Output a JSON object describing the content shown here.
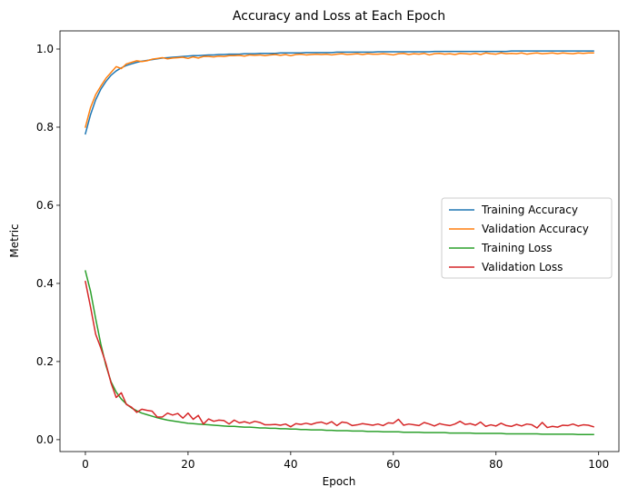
{
  "chart_data": {
    "type": "line",
    "title": "Accuracy and Loss at Each Epoch",
    "xlabel": "Epoch",
    "ylabel": "Metric",
    "xlim": [
      -4.95,
      103.95
    ],
    "ylim": [
      -0.0305,
      1.0465
    ],
    "xticks": [
      0,
      20,
      40,
      60,
      80,
      100
    ],
    "yticks": [
      0.0,
      0.2,
      0.4,
      0.6,
      0.8,
      1.0
    ],
    "xtick_labels": [
      "0",
      "20",
      "40",
      "60",
      "80",
      "100"
    ],
    "ytick_labels": [
      "0.0",
      "0.2",
      "0.4",
      "0.6",
      "0.8",
      "1.0"
    ],
    "grid": false,
    "legend_position": "center-right",
    "series": [
      {
        "name": "Training Accuracy",
        "color": "#1f77b4",
        "x": [
          0,
          1,
          2,
          3,
          4,
          5,
          6,
          7,
          8,
          9,
          10,
          11,
          12,
          13,
          14,
          15,
          16,
          17,
          18,
          19,
          20,
          21,
          22,
          23,
          24,
          25,
          26,
          27,
          28,
          29,
          30,
          31,
          32,
          33,
          34,
          35,
          36,
          37,
          38,
          39,
          40,
          41,
          42,
          43,
          44,
          45,
          46,
          47,
          48,
          49,
          50,
          51,
          52,
          53,
          54,
          55,
          56,
          57,
          58,
          59,
          60,
          61,
          62,
          63,
          64,
          65,
          66,
          67,
          68,
          69,
          70,
          71,
          72,
          73,
          74,
          75,
          76,
          77,
          78,
          79,
          80,
          81,
          82,
          83,
          84,
          85,
          86,
          87,
          88,
          89,
          90,
          91,
          92,
          93,
          94,
          95,
          96,
          97,
          98,
          99
        ],
        "y": [
          0.783,
          0.832,
          0.87,
          0.897,
          0.917,
          0.933,
          0.944,
          0.952,
          0.958,
          0.962,
          0.966,
          0.969,
          0.971,
          0.973,
          0.975,
          0.977,
          0.978,
          0.979,
          0.98,
          0.981,
          0.982,
          0.983,
          0.983,
          0.984,
          0.985,
          0.985,
          0.986,
          0.986,
          0.987,
          0.987,
          0.987,
          0.988,
          0.988,
          0.988,
          0.989,
          0.989,
          0.989,
          0.989,
          0.99,
          0.99,
          0.99,
          0.99,
          0.99,
          0.991,
          0.991,
          0.991,
          0.991,
          0.991,
          0.991,
          0.992,
          0.992,
          0.992,
          0.992,
          0.992,
          0.992,
          0.992,
          0.992,
          0.993,
          0.993,
          0.993,
          0.993,
          0.993,
          0.993,
          0.993,
          0.993,
          0.993,
          0.993,
          0.993,
          0.994,
          0.994,
          0.994,
          0.994,
          0.994,
          0.994,
          0.994,
          0.994,
          0.994,
          0.994,
          0.994,
          0.994,
          0.994,
          0.994,
          0.994,
          0.995,
          0.995,
          0.995,
          0.995,
          0.995,
          0.995,
          0.995,
          0.995,
          0.995,
          0.995,
          0.995,
          0.995,
          0.995,
          0.995,
          0.995,
          0.995,
          0.995
        ]
      },
      {
        "name": "Validation Accuracy",
        "color": "#ff7f0e",
        "x": [
          0,
          1,
          2,
          3,
          4,
          5,
          6,
          7,
          8,
          9,
          10,
          11,
          12,
          13,
          14,
          15,
          16,
          17,
          18,
          19,
          20,
          21,
          22,
          23,
          24,
          25,
          26,
          27,
          28,
          29,
          30,
          31,
          32,
          33,
          34,
          35,
          36,
          37,
          38,
          39,
          40,
          41,
          42,
          43,
          44,
          45,
          46,
          47,
          48,
          49,
          50,
          51,
          52,
          53,
          54,
          55,
          56,
          57,
          58,
          59,
          60,
          61,
          62,
          63,
          64,
          65,
          66,
          67,
          68,
          69,
          70,
          71,
          72,
          73,
          74,
          75,
          76,
          77,
          78,
          79,
          80,
          81,
          82,
          83,
          84,
          85,
          86,
          87,
          88,
          89,
          90,
          91,
          92,
          93,
          94,
          95,
          96,
          97,
          98,
          99
        ],
        "y": [
          0.8,
          0.85,
          0.883,
          0.905,
          0.925,
          0.94,
          0.955,
          0.95,
          0.962,
          0.966,
          0.97,
          0.968,
          0.97,
          0.974,
          0.976,
          0.978,
          0.975,
          0.977,
          0.978,
          0.979,
          0.976,
          0.98,
          0.977,
          0.981,
          0.981,
          0.98,
          0.982,
          0.981,
          0.983,
          0.983,
          0.984,
          0.982,
          0.985,
          0.984,
          0.985,
          0.983,
          0.985,
          0.986,
          0.984,
          0.986,
          0.983,
          0.986,
          0.987,
          0.985,
          0.986,
          0.987,
          0.986,
          0.987,
          0.985,
          0.987,
          0.988,
          0.986,
          0.987,
          0.988,
          0.986,
          0.988,
          0.987,
          0.987,
          0.988,
          0.987,
          0.985,
          0.988,
          0.989,
          0.986,
          0.988,
          0.987,
          0.989,
          0.985,
          0.988,
          0.989,
          0.987,
          0.988,
          0.986,
          0.989,
          0.988,
          0.987,
          0.989,
          0.986,
          0.99,
          0.988,
          0.987,
          0.99,
          0.988,
          0.989,
          0.988,
          0.99,
          0.987,
          0.989,
          0.99,
          0.988,
          0.989,
          0.99,
          0.988,
          0.99,
          0.989,
          0.988,
          0.99,
          0.989,
          0.99,
          0.99
        ]
      },
      {
        "name": "Training Loss",
        "color": "#2ca02c",
        "x": [
          0,
          1,
          2,
          3,
          4,
          5,
          6,
          7,
          8,
          9,
          10,
          11,
          12,
          13,
          14,
          15,
          16,
          17,
          18,
          19,
          20,
          21,
          22,
          23,
          24,
          25,
          26,
          27,
          28,
          29,
          30,
          31,
          32,
          33,
          34,
          35,
          36,
          37,
          38,
          39,
          40,
          41,
          42,
          43,
          44,
          45,
          46,
          47,
          48,
          49,
          50,
          51,
          52,
          53,
          54,
          55,
          56,
          57,
          58,
          59,
          60,
          61,
          62,
          63,
          64,
          65,
          66,
          67,
          68,
          69,
          70,
          71,
          72,
          73,
          74,
          75,
          76,
          77,
          78,
          79,
          80,
          81,
          82,
          83,
          84,
          85,
          86,
          87,
          88,
          89,
          90,
          91,
          92,
          93,
          94,
          95,
          96,
          97,
          98,
          99
        ],
        "y": [
          0.432,
          0.38,
          0.31,
          0.245,
          0.19,
          0.148,
          0.122,
          0.104,
          0.091,
          0.081,
          0.074,
          0.068,
          0.064,
          0.06,
          0.056,
          0.053,
          0.05,
          0.048,
          0.046,
          0.044,
          0.042,
          0.041,
          0.04,
          0.039,
          0.038,
          0.037,
          0.036,
          0.035,
          0.034,
          0.034,
          0.033,
          0.032,
          0.032,
          0.031,
          0.03,
          0.03,
          0.029,
          0.029,
          0.028,
          0.028,
          0.027,
          0.027,
          0.026,
          0.026,
          0.025,
          0.025,
          0.025,
          0.024,
          0.024,
          0.023,
          0.023,
          0.023,
          0.022,
          0.022,
          0.022,
          0.021,
          0.021,
          0.021,
          0.02,
          0.02,
          0.02,
          0.02,
          0.019,
          0.019,
          0.019,
          0.019,
          0.018,
          0.018,
          0.018,
          0.018,
          0.018,
          0.017,
          0.017,
          0.017,
          0.017,
          0.017,
          0.016,
          0.016,
          0.016,
          0.016,
          0.016,
          0.016,
          0.015,
          0.015,
          0.015,
          0.015,
          0.015,
          0.015,
          0.015,
          0.014,
          0.014,
          0.014,
          0.014,
          0.014,
          0.014,
          0.014,
          0.013,
          0.013,
          0.013,
          0.013
        ]
      },
      {
        "name": "Validation Loss",
        "color": "#d62728",
        "x": [
          0,
          1,
          2,
          3,
          4,
          5,
          6,
          7,
          8,
          9,
          10,
          11,
          12,
          13,
          14,
          15,
          16,
          17,
          18,
          19,
          20,
          21,
          22,
          23,
          24,
          25,
          26,
          27,
          28,
          29,
          30,
          31,
          32,
          33,
          34,
          35,
          36,
          37,
          38,
          39,
          40,
          41,
          42,
          43,
          44,
          45,
          46,
          47,
          48,
          49,
          50,
          51,
          52,
          53,
          54,
          55,
          56,
          57,
          58,
          59,
          60,
          61,
          62,
          63,
          64,
          65,
          66,
          67,
          68,
          69,
          70,
          71,
          72,
          73,
          74,
          75,
          76,
          77,
          78,
          79,
          80,
          81,
          82,
          83,
          84,
          85,
          86,
          87,
          88,
          89,
          90,
          91,
          92,
          93,
          94,
          95,
          96,
          97,
          98,
          99
        ],
        "y": [
          0.405,
          0.34,
          0.27,
          0.235,
          0.195,
          0.145,
          0.108,
          0.12,
          0.09,
          0.083,
          0.07,
          0.078,
          0.075,
          0.073,
          0.058,
          0.058,
          0.068,
          0.063,
          0.067,
          0.055,
          0.068,
          0.052,
          0.062,
          0.04,
          0.053,
          0.047,
          0.05,
          0.049,
          0.04,
          0.05,
          0.043,
          0.046,
          0.042,
          0.047,
          0.044,
          0.038,
          0.038,
          0.039,
          0.037,
          0.04,
          0.033,
          0.041,
          0.039,
          0.042,
          0.039,
          0.043,
          0.045,
          0.04,
          0.046,
          0.036,
          0.045,
          0.043,
          0.036,
          0.038,
          0.041,
          0.039,
          0.037,
          0.04,
          0.036,
          0.043,
          0.042,
          0.052,
          0.037,
          0.04,
          0.038,
          0.036,
          0.044,
          0.04,
          0.035,
          0.041,
          0.038,
          0.036,
          0.04,
          0.047,
          0.039,
          0.041,
          0.037,
          0.045,
          0.034,
          0.038,
          0.035,
          0.042,
          0.036,
          0.034,
          0.039,
          0.035,
          0.04,
          0.038,
          0.03,
          0.044,
          0.031,
          0.034,
          0.032,
          0.037,
          0.036,
          0.04,
          0.035,
          0.038,
          0.037,
          0.033
        ]
      }
    ]
  }
}
